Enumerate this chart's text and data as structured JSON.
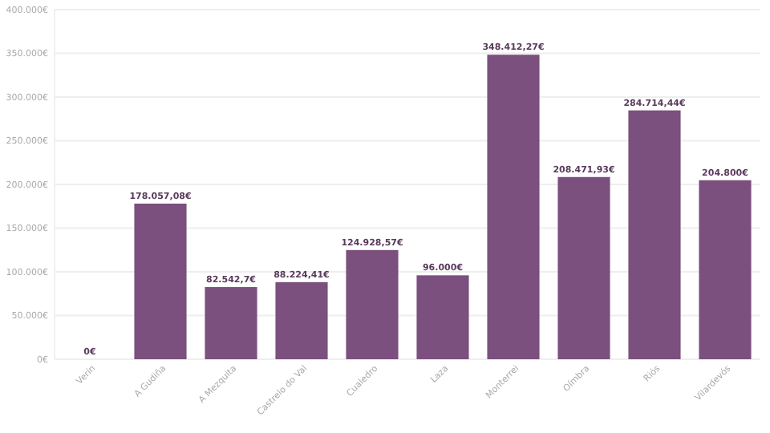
{
  "chart_data": {
    "type": "bar",
    "categories": [
      "Verín",
      "A Gudiña",
      "A Mezquita",
      "Castrelo do Val",
      "Cualedro",
      "Laza",
      "Monterrei",
      "Oímbra",
      "Riós",
      "Vilardevós"
    ],
    "values": [
      0,
      178057.08,
      82542.7,
      88224.41,
      124928.57,
      96000,
      348412.27,
      208471.93,
      284714.44,
      204800
    ],
    "value_labels": [
      "0€",
      "178.057,08€",
      "82.542,7€",
      "88.224,41€",
      "124.928,57€",
      "96.000€",
      "348.412,27€",
      "208.471,93€",
      "284.714,44€",
      "204.800€"
    ],
    "color": "#7b4f7e",
    "ylim": [
      0,
      400000
    ],
    "yticks": [
      {
        "value": 0,
        "label": "0€"
      },
      {
        "value": 50000,
        "label": "50.000€"
      },
      {
        "value": 100000,
        "label": "100.000€"
      },
      {
        "value": 150000,
        "label": "150.000€"
      },
      {
        "value": 200000,
        "label": "200.000€"
      },
      {
        "value": 250000,
        "label": "250.000€"
      },
      {
        "value": 300000,
        "label": "300.000€"
      },
      {
        "value": 350000,
        "label": "350.000€"
      },
      {
        "value": 400000,
        "label": "400.000€"
      }
    ],
    "grid": "y"
  }
}
